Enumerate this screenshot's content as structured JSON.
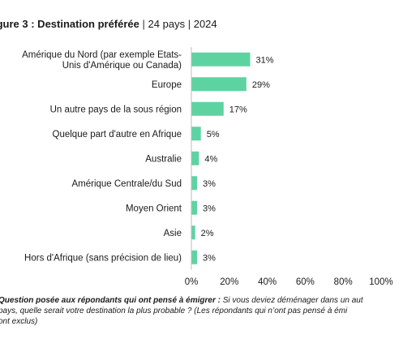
{
  "header": {
    "title_bold": "igure 3 : Destination préférée",
    "sep": "|",
    "countries": "24 pays",
    "year": "2024"
  },
  "note": {
    "question_bold": "Question posée aux répondants qui ont pensé à émigrer :",
    "question_text": " Si vous deviez déménager dans un aut",
    "line2": "pays, quelle serait votre destination la plus probable ? (Les répondants qui n’ont pas pensé à émi",
    "line3": "ont exclus)"
  },
  "chart_data": {
    "type": "bar",
    "orientation": "horizontal",
    "categories": [
      [
        "Amérique du Nord (par exemple Etats-",
        "Unis d'Amérique ou Canada)"
      ],
      [
        "Europe"
      ],
      [
        "Un autre pays de la sous région"
      ],
      [
        "Quelque part d'autre en Afrique"
      ],
      [
        "Australie"
      ],
      [
        "Amérique Centrale/du Sud"
      ],
      [
        "Moyen Orient"
      ],
      [
        "Asie"
      ],
      [
        "Hors d'Afrique (sans précision de lieu)"
      ]
    ],
    "values": [
      31,
      29,
      17,
      5,
      4,
      3,
      3,
      2,
      3
    ],
    "value_labels": [
      "31%",
      "29%",
      "17%",
      "5%",
      "4%",
      "3%",
      "3%",
      "2%",
      "3%"
    ],
    "xlim": [
      0,
      100
    ],
    "xticks": [
      "0%",
      "20%",
      "40%",
      "60%",
      "80%",
      "100%"
    ],
    "color": "#5ed3a2",
    "grid": false
  }
}
